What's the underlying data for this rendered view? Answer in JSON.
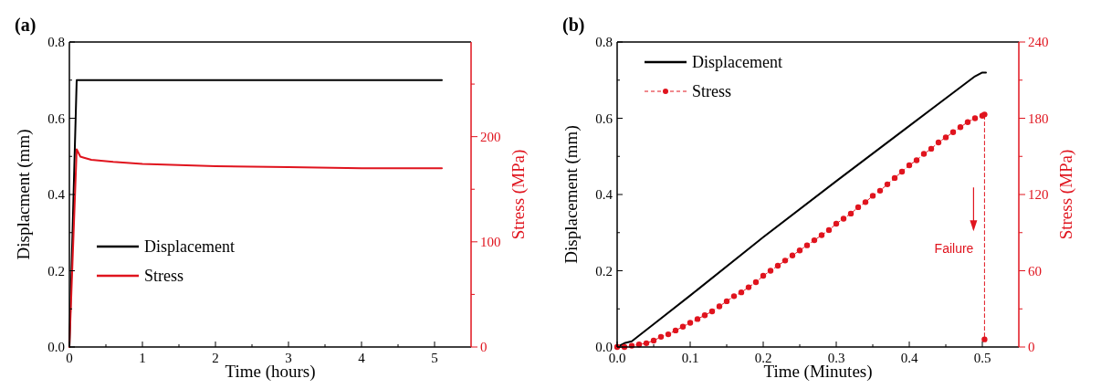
{
  "chart_data": [
    {
      "type": "line",
      "title": "(a)",
      "xlabel": "Time (hours)",
      "ylabel": "Displacment (mm)",
      "y2label": "Stress (MPa)",
      "xlim": [
        0,
        5.5
      ],
      "xticks": [
        0,
        {
          "value": 0.5,
          "label": null
        },
        1,
        {
          "value": 1.5,
          "label": null
        },
        2,
        {
          "value": 2.5,
          "label": null
        },
        3,
        {
          "value": 3.5,
          "label": null
        },
        4,
        {
          "value": 4.5,
          "label": null
        },
        5
      ],
      "ylim": [
        0,
        0.8
      ],
      "yticks": [
        {
          "value": 0,
          "label": "0.0"
        },
        {
          "value": 0.1,
          "label": null
        },
        0.2,
        {
          "value": 0.3,
          "label": null
        },
        0.4,
        {
          "value": 0.5,
          "label": null
        },
        0.6,
        {
          "value": 0.7,
          "label": null
        },
        0.8
      ],
      "y2lim": [
        0,
        290
      ],
      "y2ticks": [
        0,
        {
          "value": 50,
          "label": null
        },
        100,
        {
          "value": 150,
          "label": null
        },
        200,
        {
          "value": 250,
          "label": null
        }
      ],
      "legend": "bottom left",
      "grid": false,
      "series": [
        {
          "name": "Displacement",
          "color": "#000000",
          "x": [
            0,
            0.1,
            5.1
          ],
          "values": [
            0,
            0.7,
            0.7
          ],
          "line_style": "solid",
          "marker": "none"
        },
        {
          "name": "Stress",
          "color": "#e0141e",
          "axis": "y2",
          "x": [
            0,
            0.1,
            0.15,
            0.2,
            0.3,
            0.6,
            1,
            2,
            3,
            4,
            5.1
          ],
          "values": [
            0,
            188,
            181,
            180,
            178,
            176,
            174,
            172,
            171,
            170,
            170
          ],
          "line_style": "solid",
          "marker": "none"
        }
      ]
    },
    {
      "type": "line",
      "title": "(b)",
      "xlabel": "Time (Minutes)",
      "ylabel": "Displacement (mm)",
      "y2label": "Stress (MPa)",
      "xlim": [
        0,
        0.55
      ],
      "xticks": [
        {
          "value": 0,
          "label": "0.0"
        },
        {
          "value": 0.05,
          "label": null
        },
        0.1,
        {
          "value": 0.15,
          "label": null
        },
        0.2,
        {
          "value": 0.25,
          "label": null
        },
        0.3,
        {
          "value": 0.35,
          "label": null
        },
        0.4,
        {
          "value": 0.45,
          "label": null
        },
        0.5
      ],
      "ylim": [
        0,
        0.8
      ],
      "yticks": [
        {
          "value": 0,
          "label": "0.0"
        },
        {
          "value": 0.1,
          "label": null
        },
        0.2,
        {
          "value": 0.3,
          "label": null
        },
        0.4,
        {
          "value": 0.5,
          "label": null
        },
        0.6,
        {
          "value": 0.7,
          "label": null
        },
        0.8
      ],
      "y2lim": [
        0,
        240
      ],
      "y2ticks": [
        0,
        {
          "value": 30,
          "label": null
        },
        60,
        {
          "value": 90,
          "label": null
        },
        120,
        {
          "value": 150,
          "label": null
        },
        180,
        {
          "value": 210,
          "label": null
        },
        240
      ],
      "legend": "top left",
      "grid": false,
      "annotations": [
        "Failure"
      ],
      "series": [
        {
          "name": "Displacement",
          "color": "#000000",
          "x": [
            0,
            0.01,
            0.02,
            0.05,
            0.1,
            0.2,
            0.3,
            0.4,
            0.49,
            0.5,
            0.505
          ],
          "values": [
            0,
            0.01,
            0.015,
            0.06,
            0.135,
            0.288,
            0.435,
            0.58,
            0.71,
            0.72,
            0.72
          ],
          "line_style": "solid",
          "marker": "none"
        },
        {
          "name": "Stress",
          "color": "#e0141e",
          "axis": "y2",
          "x": [
            0,
            0.01,
            0.02,
            0.03,
            0.04,
            0.05,
            0.06,
            0.07,
            0.08,
            0.09,
            0.1,
            0.11,
            0.12,
            0.13,
            0.14,
            0.15,
            0.16,
            0.17,
            0.18,
            0.19,
            0.2,
            0.21,
            0.22,
            0.23,
            0.24,
            0.25,
            0.26,
            0.27,
            0.28,
            0.29,
            0.3,
            0.31,
            0.32,
            0.33,
            0.34,
            0.35,
            0.36,
            0.37,
            0.38,
            0.39,
            0.4,
            0.41,
            0.42,
            0.43,
            0.44,
            0.45,
            0.46,
            0.47,
            0.48,
            0.49,
            0.5,
            0.503,
            0.503
          ],
          "values": [
            0,
            0,
            1,
            2,
            3,
            5,
            8,
            10,
            13,
            16,
            19,
            22,
            25,
            28,
            32,
            36,
            40,
            43,
            47,
            51,
            56,
            60,
            64,
            68,
            72,
            76,
            80,
            84,
            88,
            92,
            97,
            101,
            105,
            110,
            114,
            119,
            123,
            128,
            133,
            138,
            143,
            147,
            152,
            156,
            161,
            165,
            169,
            173,
            177,
            180,
            182,
            183,
            6
          ],
          "line_style": "dashed",
          "marker": "circle"
        }
      ]
    }
  ]
}
